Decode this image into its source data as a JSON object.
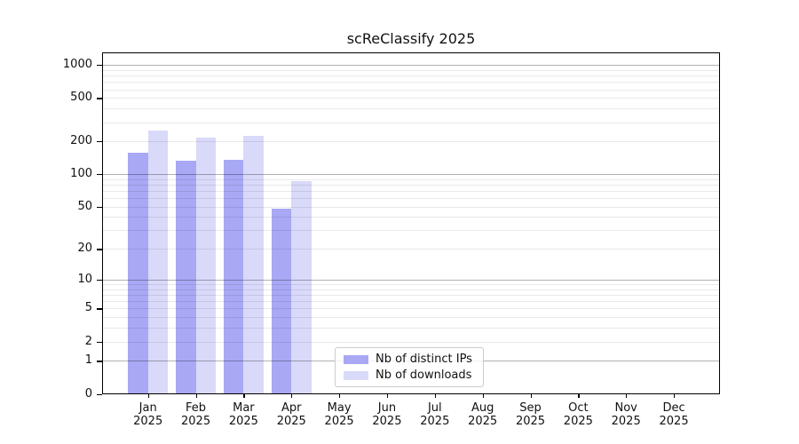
{
  "chart_data": {
    "type": "bar",
    "title": "scReClassify 2025",
    "yscale": "log1p",
    "yticks": [
      0,
      1,
      2,
      5,
      10,
      20,
      50,
      100,
      200,
      500,
      1000
    ],
    "ylim": [
      0,
      1300
    ],
    "grid": true,
    "legend_position": "bottom-center",
    "categories": [
      {
        "month": "Jan",
        "year": "2025"
      },
      {
        "month": "Feb",
        "year": "2025"
      },
      {
        "month": "Mar",
        "year": "2025"
      },
      {
        "month": "Apr",
        "year": "2025"
      },
      {
        "month": "May",
        "year": "2025"
      },
      {
        "month": "Jun",
        "year": "2025"
      },
      {
        "month": "Jul",
        "year": "2025"
      },
      {
        "month": "Aug",
        "year": "2025"
      },
      {
        "month": "Sep",
        "year": "2025"
      },
      {
        "month": "Oct",
        "year": "2025"
      },
      {
        "month": "Nov",
        "year": "2025"
      },
      {
        "month": "Dec",
        "year": "2025"
      }
    ],
    "series": [
      {
        "name": "Nb of distinct IPs",
        "color": "#a8a8f5",
        "values": [
          157,
          134,
          136,
          48,
          0,
          0,
          0,
          0,
          0,
          0,
          0,
          0
        ]
      },
      {
        "name": "Nb of downloads",
        "color": "#d9d9f9",
        "values": [
          250,
          216,
          224,
          87,
          0,
          0,
          0,
          0,
          0,
          0,
          0,
          0
        ]
      }
    ],
    "colors": {
      "grid_minor": "rgba(0,0,0,0.085)",
      "grid_major": "rgba(0,0,0,0.30)",
      "spine": "#000000",
      "text": "#111111"
    }
  }
}
